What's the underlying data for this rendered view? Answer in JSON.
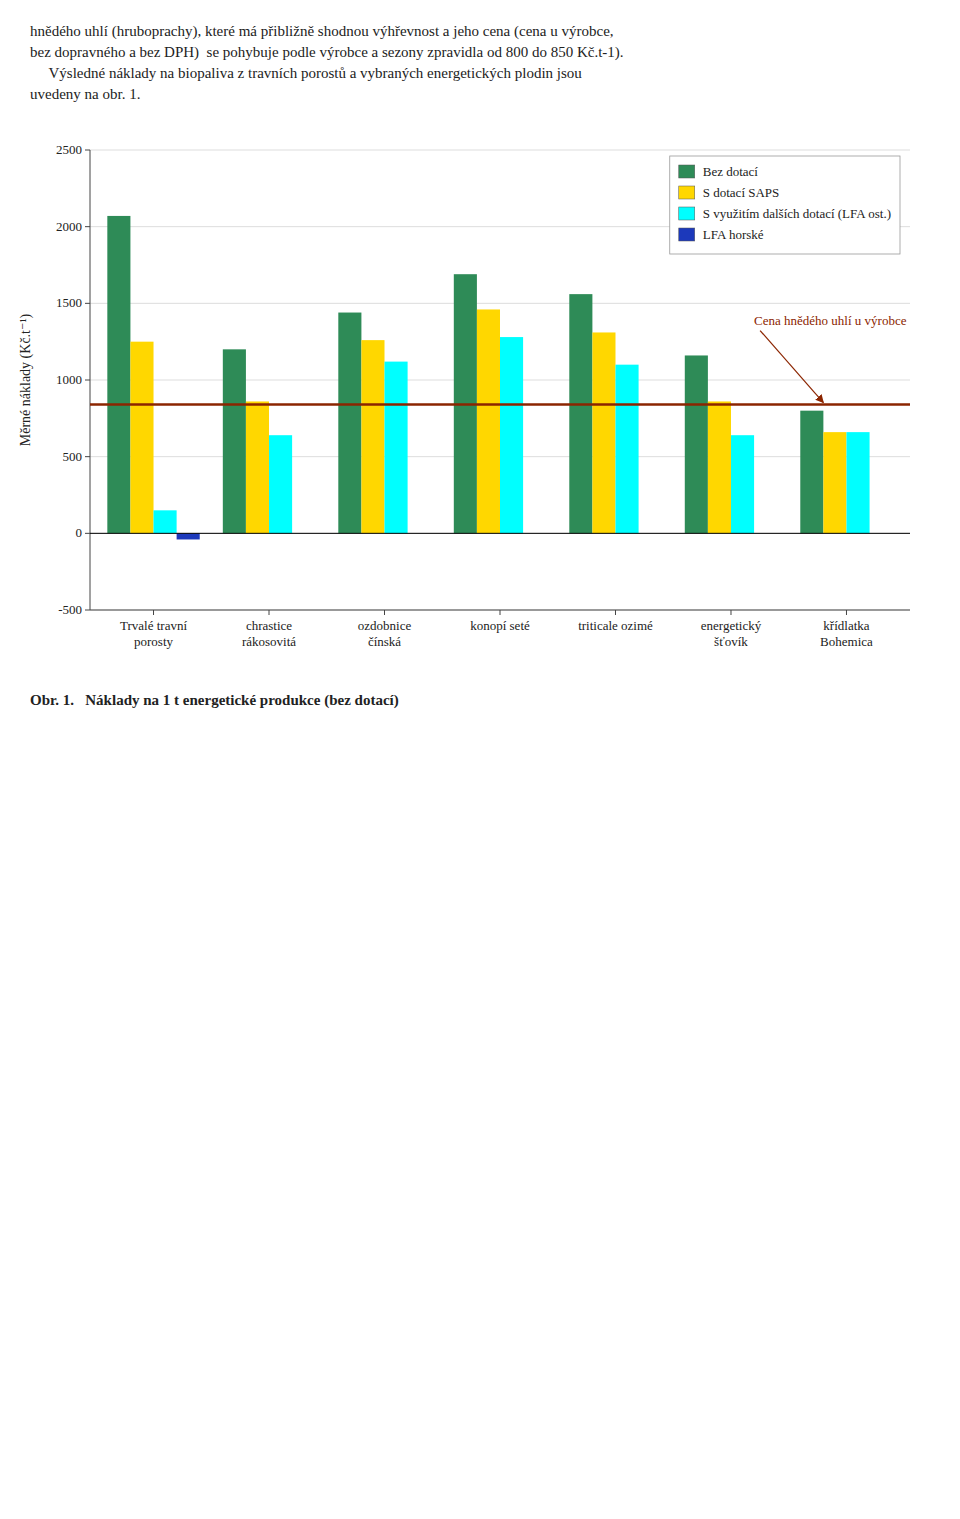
{
  "chart_data": {
    "type": "bar",
    "header": [
      "hnědého uhlí (hruboprachy), které má přibližně shodnou výhřevnost a jeho cena (cena u výrobce,",
      "bez dopravného a bez DPH)  se pohybuje podle výrobce a sezony zpravidla od 800 do 850 Kč.t-1).",
      "     Výsledné náklady na biopaliva z travních porostů a vybraných energetických plodin jsou\nuvedeny na obr. 1."
    ],
    "caption": "Obr. 1.   Náklady na 1 t energetické produkce (bez dotací)",
    "ylabel": "Měrné náklady (Kč.t⁻¹)",
    "categories": [
      "Trvalé travní\nporosty",
      "chrastice\nrákosovitá",
      "ozdobnice\nčínská",
      "konopí seté",
      "triticale ozimé",
      "energetický\nšťovík",
      "křídlatka\nBohemica"
    ],
    "series": [
      {
        "name": "Bez dotací",
        "color": "#2E8B57",
        "values": [
          2070,
          1200,
          1440,
          1690,
          1560,
          1160,
          800
        ]
      },
      {
        "name": "S dotací SAPS",
        "color": "#FFD700",
        "values": [
          1250,
          860,
          1260,
          1460,
          1310,
          860,
          660
        ]
      },
      {
        "name": "S využitím dalších dotací (LFA ost.)",
        "color": "#00FFFF",
        "values": [
          150,
          640,
          1120,
          1280,
          1100,
          640,
          660
        ]
      },
      {
        "name": "LFA horské",
        "color": "#1C39BB",
        "values": [
          -40,
          null,
          null,
          null,
          null,
          null,
          null
        ]
      }
    ],
    "annotations": [
      {
        "text": "Cena hnědého uhlí u výrobce",
        "y": 840,
        "color": "#8B2500"
      }
    ],
    "ylim": [
      -500,
      2500
    ],
    "yticks": [
      -500,
      0,
      500,
      1000,
      1500,
      2000,
      2500
    ],
    "grid": true,
    "legend": "upper right"
  }
}
